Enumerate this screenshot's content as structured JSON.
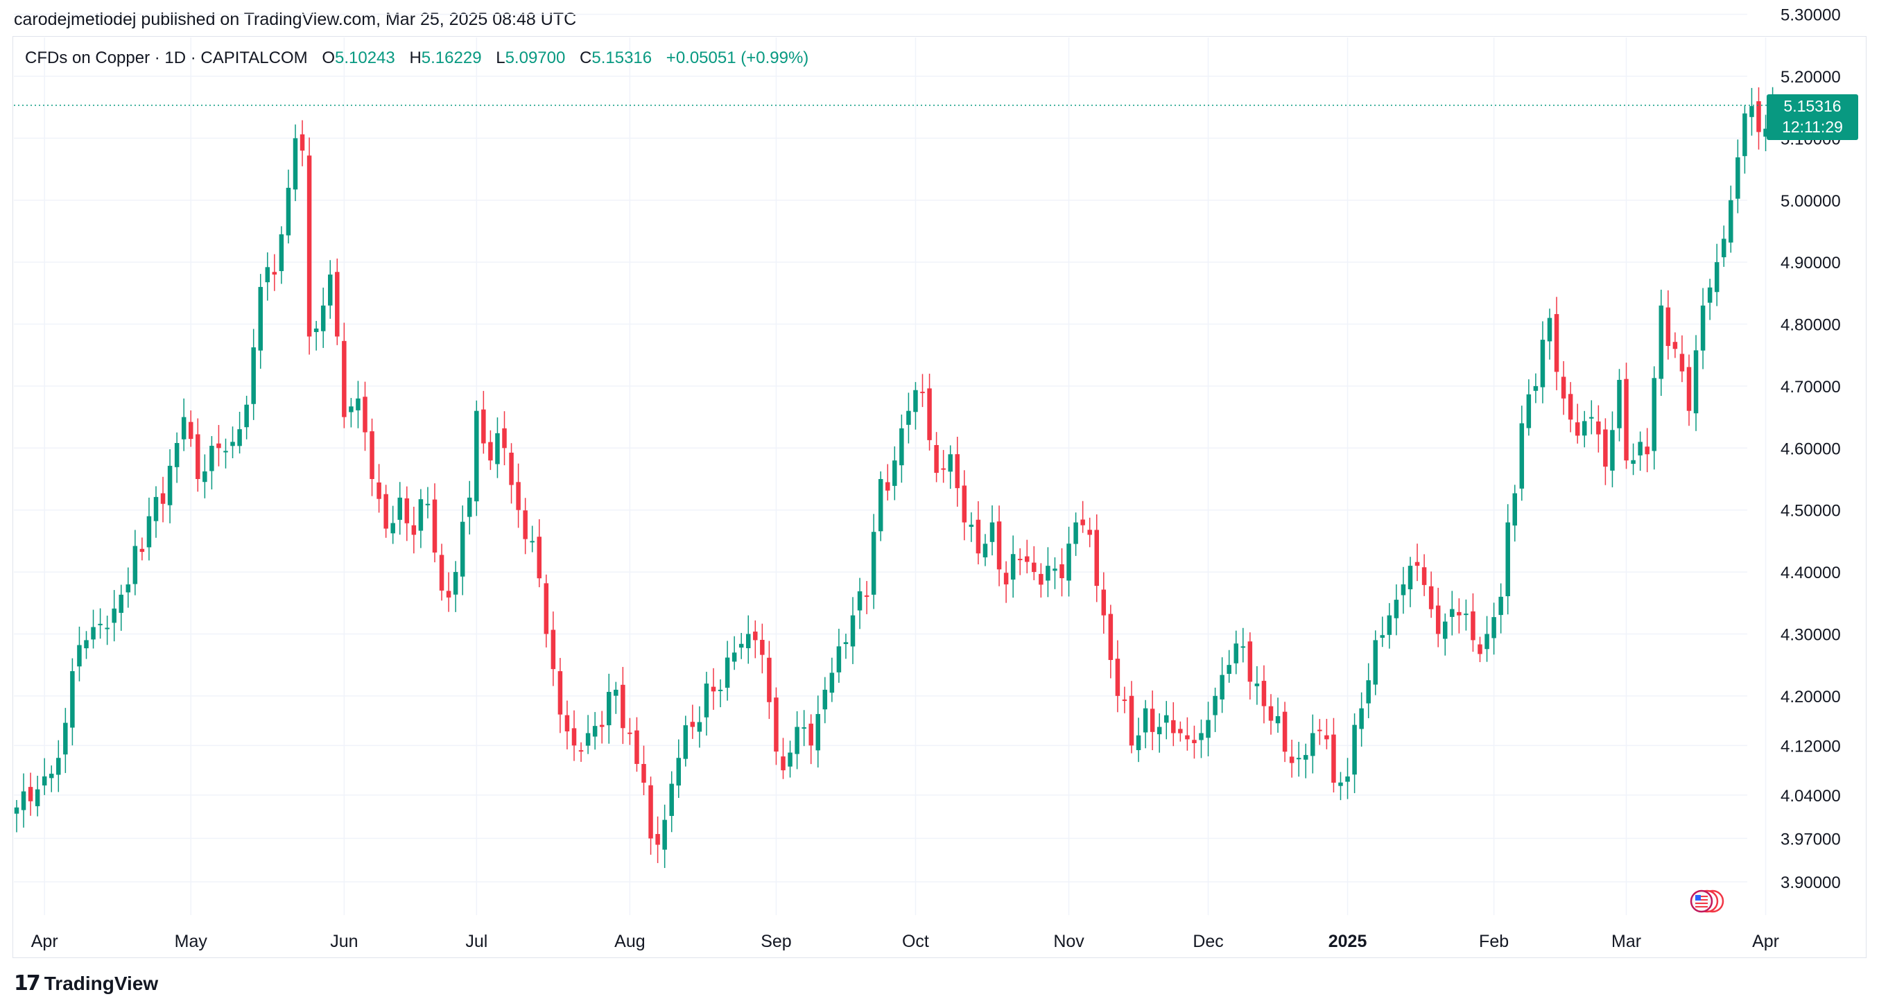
{
  "publisher": {
    "text": "carodejmetlodej published on TradingView.com, Mar 25, 2025 08:48 UTC"
  },
  "legend": {
    "symbol": "CFDs on Copper · 1D · CAPITALCOM",
    "open_label": "O",
    "open": "5.10243",
    "high_label": "H",
    "high": "5.16229",
    "low_label": "L",
    "low": "5.09700",
    "close_label": "C",
    "close": "5.15316",
    "change": "+0.05051 (+0.99%)"
  },
  "price_badge": {
    "price": "5.15316",
    "countdown": "12:11:29"
  },
  "footer": {
    "brand": "TradingView",
    "logo_icon": "tradingview-logo-icon"
  },
  "colors": {
    "up": "#089981",
    "down": "#f23645",
    "grid": "#f0f3fa",
    "text": "#131722"
  },
  "chart_data": {
    "type": "candlestick",
    "title": "CFDs on Copper · 1D · CAPITALCOM",
    "ylim": [
      3.85,
      5.33
    ],
    "y_ticks": [
      {
        "label": "5.30000",
        "value": 5.3
      },
      {
        "label": "5.20000",
        "value": 5.2
      },
      {
        "label": "5.10000",
        "value": 5.1
      },
      {
        "label": "5.00000",
        "value": 5.0
      },
      {
        "label": "4.90000",
        "value": 4.9
      },
      {
        "label": "4.80000",
        "value": 4.8
      },
      {
        "label": "4.70000",
        "value": 4.7
      },
      {
        "label": "4.60000",
        "value": 4.6
      },
      {
        "label": "4.50000",
        "value": 4.5
      },
      {
        "label": "4.40000",
        "value": 4.4
      },
      {
        "label": "4.30000",
        "value": 4.3
      },
      {
        "label": "4.20000",
        "value": 4.2
      },
      {
        "label": "4.12000",
        "value": 4.12
      },
      {
        "label": "4.04000",
        "value": 4.04
      },
      {
        "label": "3.97000",
        "value": 3.97
      },
      {
        "label": "3.90000",
        "value": 3.9
      }
    ],
    "x_ticks": [
      {
        "label": "Apr",
        "index": 4,
        "bold": false
      },
      {
        "label": "May",
        "index": 25,
        "bold": false
      },
      {
        "label": "Jun",
        "index": 47,
        "bold": false
      },
      {
        "label": "Jul",
        "index": 66,
        "bold": false
      },
      {
        "label": "Aug",
        "index": 88,
        "bold": false
      },
      {
        "label": "Sep",
        "index": 109,
        "bold": false
      },
      {
        "label": "Oct",
        "index": 129,
        "bold": false
      },
      {
        "label": "Nov",
        "index": 151,
        "bold": false
      },
      {
        "label": "Dec",
        "index": 171,
        "bold": false
      },
      {
        "label": "2025",
        "index": 191,
        "bold": true
      },
      {
        "label": "Feb",
        "index": 212,
        "bold": false
      },
      {
        "label": "Mar",
        "index": 231,
        "bold": false
      },
      {
        "label": "Apr",
        "index": 251,
        "bold": false
      }
    ],
    "last_price": 5.15316,
    "anchors": [
      [
        0,
        4.02
      ],
      [
        2,
        4.03
      ],
      [
        6,
        4.1
      ],
      [
        8,
        4.24
      ],
      [
        10,
        4.29
      ],
      [
        13,
        4.31
      ],
      [
        16,
        4.38
      ],
      [
        19,
        4.49
      ],
      [
        21,
        4.51
      ],
      [
        24,
        4.65
      ],
      [
        26,
        4.55
      ],
      [
        29,
        4.6
      ],
      [
        31,
        4.61
      ],
      [
        33,
        4.67
      ],
      [
        35,
        4.86
      ],
      [
        37,
        4.88
      ],
      [
        39,
        5.02
      ],
      [
        40,
        5.1
      ],
      [
        41,
        5.08
      ],
      [
        42,
        4.78
      ],
      [
        44,
        4.83
      ],
      [
        45,
        4.88
      ],
      [
        46,
        4.78
      ],
      [
        47,
        4.65
      ],
      [
        49,
        4.68
      ],
      [
        51,
        4.55
      ],
      [
        53,
        4.47
      ],
      [
        55,
        4.52
      ],
      [
        57,
        4.46
      ],
      [
        59,
        4.51
      ],
      [
        61,
        4.37
      ],
      [
        63,
        4.4
      ],
      [
        65,
        4.52
      ],
      [
        66,
        4.66
      ],
      [
        68,
        4.58
      ],
      [
        70,
        4.6
      ],
      [
        72,
        4.5
      ],
      [
        74,
        4.45
      ],
      [
        76,
        4.3
      ],
      [
        78,
        4.17
      ],
      [
        80,
        4.12
      ],
      [
        82,
        4.14
      ],
      [
        84,
        4.15
      ],
      [
        86,
        4.21
      ],
      [
        88,
        4.14
      ],
      [
        90,
        4.06
      ],
      [
        91,
        3.97
      ],
      [
        93,
        4.0
      ],
      [
        95,
        4.1
      ],
      [
        97,
        4.15
      ],
      [
        99,
        4.22
      ],
      [
        101,
        4.21
      ],
      [
        103,
        4.27
      ],
      [
        105,
        4.3
      ],
      [
        106,
        4.29
      ],
      [
        108,
        4.19
      ],
      [
        110,
        4.08
      ],
      [
        112,
        4.15
      ],
      [
        114,
        4.12
      ],
      [
        116,
        4.21
      ],
      [
        118,
        4.28
      ],
      [
        120,
        4.33
      ],
      [
        122,
        4.36
      ],
      [
        124,
        4.55
      ],
      [
        126,
        4.58
      ],
      [
        128,
        4.66
      ],
      [
        130,
        4.69
      ],
      [
        132,
        4.56
      ],
      [
        134,
        4.59
      ],
      [
        136,
        4.48
      ],
      [
        138,
        4.43
      ],
      [
        140,
        4.48
      ],
      [
        142,
        4.38
      ],
      [
        144,
        4.42
      ],
      [
        146,
        4.4
      ],
      [
        148,
        4.41
      ],
      [
        150,
        4.39
      ],
      [
        152,
        4.48
      ],
      [
        154,
        4.46
      ],
      [
        156,
        4.33
      ],
      [
        158,
        4.2
      ],
      [
        160,
        4.12
      ],
      [
        162,
        4.18
      ],
      [
        164,
        4.15
      ],
      [
        166,
        4.14
      ],
      [
        168,
        4.13
      ],
      [
        170,
        4.14
      ],
      [
        172,
        4.2
      ],
      [
        174,
        4.25
      ],
      [
        176,
        4.28
      ],
      [
        178,
        4.22
      ],
      [
        180,
        4.16
      ],
      [
        182,
        4.11
      ],
      [
        184,
        4.1
      ],
      [
        186,
        4.14
      ],
      [
        188,
        4.13
      ],
      [
        189,
        4.06
      ],
      [
        191,
        4.07
      ],
      [
        193,
        4.18
      ],
      [
        195,
        4.29
      ],
      [
        197,
        4.33
      ],
      [
        199,
        4.38
      ],
      [
        201,
        4.41
      ],
      [
        203,
        4.34
      ],
      [
        205,
        4.32
      ],
      [
        207,
        4.33
      ],
      [
        209,
        4.29
      ],
      [
        211,
        4.3
      ],
      [
        213,
        4.36
      ],
      [
        214,
        4.48
      ],
      [
        216,
        4.64
      ],
      [
        218,
        4.7
      ],
      [
        220,
        4.81
      ],
      [
        222,
        4.68
      ],
      [
        224,
        4.62
      ],
      [
        226,
        4.65
      ],
      [
        228,
        4.57
      ],
      [
        230,
        4.71
      ],
      [
        231,
        4.58
      ],
      [
        233,
        4.61
      ],
      [
        234,
        4.59
      ],
      [
        236,
        4.83
      ],
      [
        238,
        4.76
      ],
      [
        240,
        4.66
      ],
      [
        242,
        4.83
      ],
      [
        244,
        4.9
      ],
      [
        246,
        5.0
      ],
      [
        248,
        5.14
      ],
      [
        250,
        5.11
      ],
      [
        252,
        5.15316
      ]
    ]
  }
}
